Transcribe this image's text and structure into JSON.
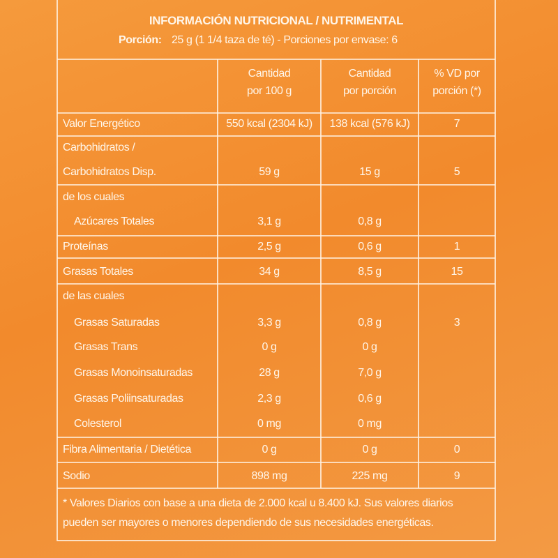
{
  "header": {
    "title": "INFORMACIÓN NUTRICIONAL / NUTRIMENTAL",
    "portion_label": "Porción:",
    "portion_text": "25 g (1 1/4 taza de té) - Porciones por envase: 6"
  },
  "table": {
    "columns": [
      [
        "Cantidad",
        "por 100 g"
      ],
      [
        "Cantidad",
        "por porción"
      ],
      [
        "% VD por",
        "porción (*)"
      ]
    ],
    "rows": [
      [
        "Valor Energético",
        "550 kcal (2304 kJ)",
        "138 kcal (576 kJ)",
        "7"
      ],
      [
        "Carbohidratos /",
        null,
        null,
        null
      ],
      [
        "Carbohidratos Disp.",
        "59 g",
        "15 g",
        "5"
      ],
      [
        "de los cuales",
        null,
        null,
        null
      ],
      [
        "Azúcares Totales",
        "3,1 g",
        "0,8 g",
        null
      ],
      [
        "Proteínas",
        "2,5 g",
        "0,6 g",
        "1"
      ],
      [
        "Grasas Totales",
        "34 g",
        "8,5 g",
        "15"
      ],
      [
        "de las cuales",
        null,
        null,
        null
      ],
      [
        "Grasas Saturadas",
        "3,3 g",
        "0,8 g",
        "3"
      ],
      [
        "Grasas Trans",
        "0 g",
        "0 g",
        null
      ],
      [
        "Grasas Monoinsaturadas",
        "28 g",
        "7,0 g",
        null
      ],
      [
        "Grasas Poliinsaturadas",
        "2,3 g",
        "0,6 g",
        null
      ],
      [
        "Colesterol",
        "0 mg",
        "0 mg",
        null
      ],
      [
        "Fibra Alimentaria / Dietética",
        "0 g",
        "0 g",
        "0"
      ],
      [
        "Sodio",
        "898 mg",
        "225 mg",
        "9"
      ]
    ]
  },
  "footnote": [
    "* Valores Diarios con base a una dieta de 2.000 kcal u 8.400 kJ. Sus valores diarios",
    "pueden ser mayores o menores dependiendo de sus necesidades energéticas."
  ]
}
